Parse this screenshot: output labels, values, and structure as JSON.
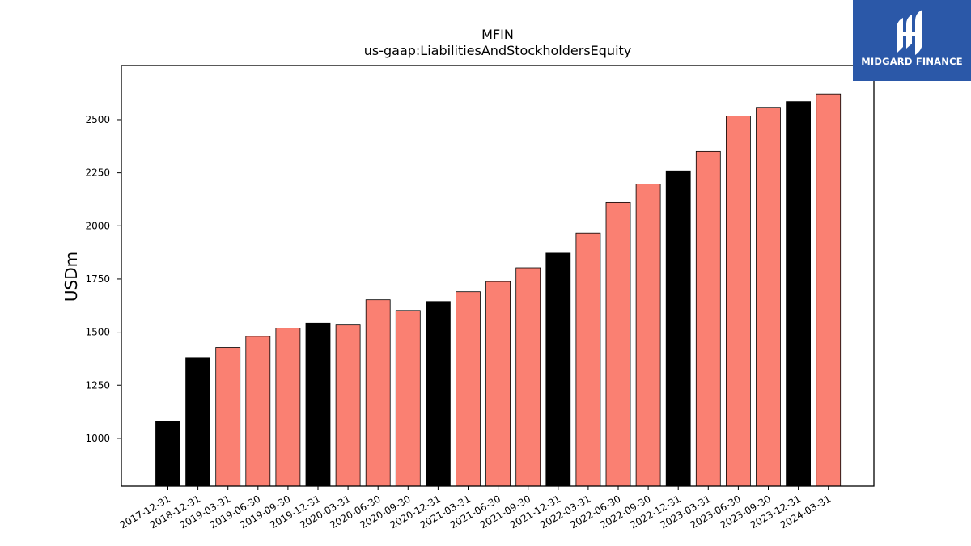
{
  "chart_data": {
    "type": "bar",
    "title": "MFIN",
    "subtitle": "us-gaap:LiabilitiesAndStockholdersEquity",
    "xlabel": "",
    "ylabel": "USDm",
    "ylim": [
      775,
      2755
    ],
    "yticks": [
      1000,
      1250,
      1500,
      1750,
      2000,
      2250,
      2500
    ],
    "grid": false,
    "categories": [
      "2017-12-31",
      "2018-12-31",
      "2019-03-31",
      "2019-06-30",
      "2019-09-30",
      "2019-12-31",
      "2020-03-31",
      "2020-06-30",
      "2020-09-30",
      "2020-12-31",
      "2021-03-31",
      "2021-06-30",
      "2021-09-30",
      "2021-12-31",
      "2022-03-31",
      "2022-06-30",
      "2022-09-30",
      "2022-12-31",
      "2023-03-31",
      "2023-06-30",
      "2023-09-30",
      "2023-12-31",
      "2024-03-31"
    ],
    "values": [
      1079,
      1381,
      1428,
      1480,
      1519,
      1543,
      1534,
      1652,
      1602,
      1644,
      1690,
      1738,
      1803,
      1872,
      1966,
      2110,
      2197,
      2259,
      2350,
      2517,
      2558,
      2585,
      2621
    ],
    "annual": [
      true,
      true,
      false,
      false,
      false,
      true,
      false,
      false,
      false,
      true,
      false,
      false,
      false,
      true,
      false,
      false,
      false,
      true,
      false,
      false,
      false,
      true,
      false
    ],
    "colors": {
      "annual": "#000000",
      "quarterly": "#fa8072",
      "edge": "#000000"
    }
  },
  "logo": {
    "text": "MIDGARD FINANCE",
    "icon": "midgard-logo-icon"
  }
}
